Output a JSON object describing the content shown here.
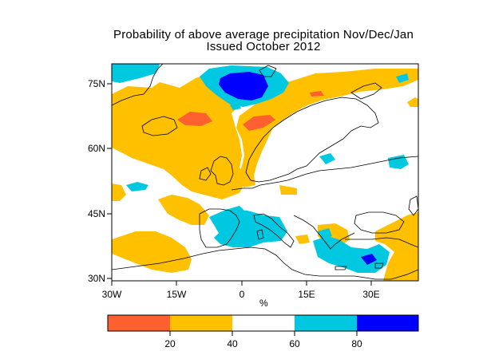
{
  "title": "Probability of above average precipitation Nov/Dec/Jan",
  "subtitle": "Issued October 2012",
  "unit": "%",
  "x_ticks": [
    "30W",
    "15W",
    "0",
    "15E",
    "30E"
  ],
  "y_ticks": [
    "75N",
    "60N",
    "45N",
    "30N"
  ],
  "colorbar": {
    "ticks": [
      "20",
      "40",
      "60",
      "80"
    ],
    "bins": [
      {
        "from": 0,
        "to": 20,
        "color": "#ff6030"
      },
      {
        "from": 20,
        "to": 40,
        "color": "#ffc000"
      },
      {
        "from": 40,
        "to": 60,
        "color": "#ffffff"
      },
      {
        "from": 60,
        "to": 80,
        "color": "#00c8e0"
      },
      {
        "from": 80,
        "to": 100,
        "color": "#0000ff"
      }
    ]
  },
  "map": {
    "lon_range": [
      -31,
      40
    ],
    "lat_range": [
      29.5,
      81
    ],
    "projection": "lat-lon"
  }
}
